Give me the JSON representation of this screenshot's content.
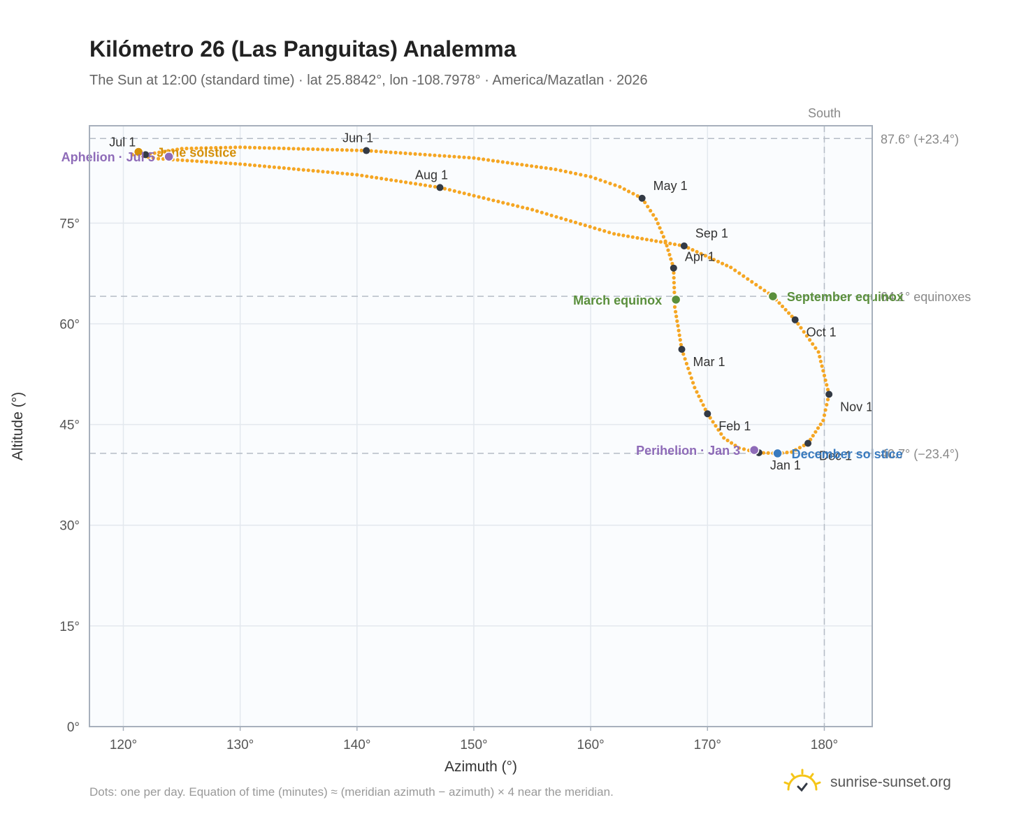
{
  "header": {
    "title": "Kilómetro 26 (Las Panguitas) Analemma",
    "subtitle": "The Sun at 12:00 (standard time) · lat 25.8842°, lon -108.7978° · America/Mazatlan · 2026"
  },
  "footnote": "Dots: one per day. Equation of time (minutes) ≈ (meridian azimuth − azimuth) × 4 near the meridian.",
  "brand": {
    "name": "sunrise-sunset.org",
    "icon": "sun-logo-icon",
    "color": "#f5c518"
  },
  "colors": {
    "analemma": "#f5a623",
    "month_marker": "#333a45",
    "equinox": "#5a8f3c",
    "december_solstice": "#3a7bbf",
    "june_solstice": "#d4900a",
    "apsis": "#8e6bb8",
    "reference_line": "#b5bcc6",
    "plot_background": "#fafcfe",
    "plot_border": "#a7b0bc",
    "grid": "#e3e8ee"
  },
  "chart_data": {
    "type": "scatter",
    "xlabel": "Azimuth (°)",
    "ylabel": "Altitude (°)",
    "xlim": [
      117.1,
      184.1
    ],
    "ylim": [
      0,
      89.5
    ],
    "xticks": [
      {
        "value": 120,
        "label": "120°"
      },
      {
        "value": 130,
        "label": "130°"
      },
      {
        "value": 140,
        "label": "140°"
      },
      {
        "value": 150,
        "label": "150°"
      },
      {
        "value": 160,
        "label": "160°"
      },
      {
        "value": 170,
        "label": "170°"
      },
      {
        "value": 180,
        "label": "180°"
      }
    ],
    "yticks": [
      {
        "value": 0,
        "label": "0°"
      },
      {
        "value": 15,
        "label": "15°"
      },
      {
        "value": 30,
        "label": "30°"
      },
      {
        "value": 45,
        "label": "45°"
      },
      {
        "value": 60,
        "label": "60°"
      },
      {
        "value": 75,
        "label": "75°"
      }
    ],
    "grid": true,
    "reference_lines": {
      "horizontal": [
        {
          "y": 87.6,
          "label": "87.6° (+23.4°)"
        },
        {
          "y": 64.1,
          "label": "64.1° equinoxes"
        },
        {
          "y": 40.7,
          "label": "40.7° (−23.4°)"
        }
      ],
      "vertical": [
        {
          "x": 180,
          "label": "South"
        }
      ]
    },
    "month_markers": [
      {
        "label": "Jan 1",
        "az": 174.4,
        "alt": 40.8
      },
      {
        "label": "Feb 1",
        "az": 170.0,
        "alt": 46.6
      },
      {
        "label": "Mar 1",
        "az": 167.8,
        "alt": 56.2
      },
      {
        "label": "Apr 1",
        "az": 167.1,
        "alt": 68.3
      },
      {
        "label": "May 1",
        "az": 164.4,
        "alt": 78.7
      },
      {
        "label": "Jun 1",
        "az": 140.8,
        "alt": 85.8
      },
      {
        "label": "Jul 1",
        "az": 121.9,
        "alt": 85.2
      },
      {
        "label": "Aug 1",
        "az": 147.1,
        "alt": 80.3
      },
      {
        "label": "Sep 1",
        "az": 168.0,
        "alt": 71.6
      },
      {
        "label": "Oct 1",
        "az": 177.5,
        "alt": 60.6
      },
      {
        "label": "Nov 1",
        "az": 180.4,
        "alt": 49.5
      },
      {
        "label": "Dec 1",
        "az": 178.6,
        "alt": 42.2
      }
    ],
    "events": [
      {
        "label": "March equinox",
        "az": 167.3,
        "alt": 63.6,
        "color": "#5a8f3c"
      },
      {
        "label": "September equinox",
        "az": 175.6,
        "alt": 64.1,
        "color": "#5a8f3c"
      },
      {
        "label": "June solstice",
        "az": 121.3,
        "alt": 85.6,
        "color": "#d4900a"
      },
      {
        "label": "December solstice",
        "az": 176.0,
        "alt": 40.7,
        "color": "#3a7bbf"
      },
      {
        "label": "Aphelion · Jul 5",
        "az": 123.9,
        "alt": 84.9,
        "color": "#8e6bb8"
      },
      {
        "label": "Perihelion · Jan 3",
        "az": 174.0,
        "alt": 41.2,
        "color": "#8e6bb8"
      }
    ],
    "analemma_path": [
      [
        174.4,
        40.8
      ],
      [
        172.7,
        41.5
      ],
      [
        171.4,
        43.0
      ],
      [
        170.0,
        46.6
      ],
      [
        168.9,
        50.5
      ],
      [
        167.8,
        56.2
      ],
      [
        167.2,
        62.5
      ],
      [
        167.1,
        68.3
      ],
      [
        166.4,
        72.3
      ],
      [
        165.6,
        75.6
      ],
      [
        164.4,
        78.7
      ],
      [
        162.5,
        80.4
      ],
      [
        160.0,
        81.9
      ],
      [
        157.0,
        83.0
      ],
      [
        150.0,
        84.7
      ],
      [
        140.8,
        85.8
      ],
      [
        130.0,
        86.3
      ],
      [
        125.0,
        86.1
      ],
      [
        121.9,
        85.2
      ],
      [
        120.8,
        85.2
      ],
      [
        123.0,
        84.6
      ],
      [
        130.0,
        83.8
      ],
      [
        140.0,
        82.2
      ],
      [
        147.1,
        80.3
      ],
      [
        155.0,
        77.0
      ],
      [
        162.0,
        73.4
      ],
      [
        168.0,
        71.6
      ],
      [
        172.0,
        68.4
      ],
      [
        175.6,
        64.1
      ],
      [
        177.5,
        60.6
      ],
      [
        179.5,
        55.8
      ],
      [
        180.4,
        49.5
      ],
      [
        179.9,
        45.6
      ],
      [
        178.6,
        42.2
      ],
      [
        177.2,
        40.9
      ],
      [
        176.0,
        40.7
      ],
      [
        174.4,
        40.8
      ]
    ]
  }
}
